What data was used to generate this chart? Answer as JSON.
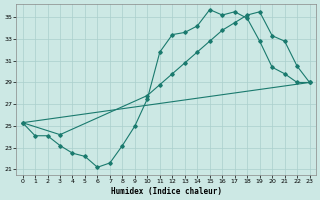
{
  "xlabel": "Humidex (Indice chaleur)",
  "xlim": [
    -0.5,
    23.5
  ],
  "ylim": [
    20.5,
    36.2
  ],
  "xticks": [
    0,
    1,
    2,
    3,
    4,
    5,
    6,
    7,
    8,
    9,
    10,
    11,
    12,
    13,
    14,
    15,
    16,
    17,
    18,
    19,
    20,
    21,
    22,
    23
  ],
  "yticks": [
    21,
    23,
    25,
    27,
    29,
    31,
    33,
    35
  ],
  "bg_color": "#cce8e4",
  "grid_color": "#aacfcc",
  "line_color": "#1a7a6e",
  "line1_x": [
    0,
    1,
    2,
    3,
    4,
    5,
    6,
    7,
    8,
    9,
    10,
    11,
    12,
    13,
    14,
    15,
    16,
    17,
    18,
    19,
    20,
    21,
    22,
    23
  ],
  "line1_y": [
    25.3,
    24.1,
    24.1,
    23.2,
    22.5,
    22.2,
    21.2,
    21.6,
    23.2,
    25.0,
    27.5,
    31.8,
    33.4,
    33.6,
    34.2,
    35.7,
    35.2,
    35.5,
    34.9,
    32.8,
    30.4,
    29.8,
    29.0,
    29.0
  ],
  "line2_x": [
    0,
    3,
    10,
    11,
    12,
    13,
    14,
    15,
    16,
    17,
    18,
    19,
    20,
    21,
    22,
    23
  ],
  "line2_y": [
    25.3,
    24.2,
    27.8,
    28.8,
    29.8,
    30.8,
    31.8,
    32.8,
    33.8,
    34.5,
    35.2,
    35.5,
    33.3,
    32.8,
    30.5,
    29.0
  ],
  "line3_x": [
    0,
    23
  ],
  "line3_y": [
    25.3,
    29.0
  ]
}
